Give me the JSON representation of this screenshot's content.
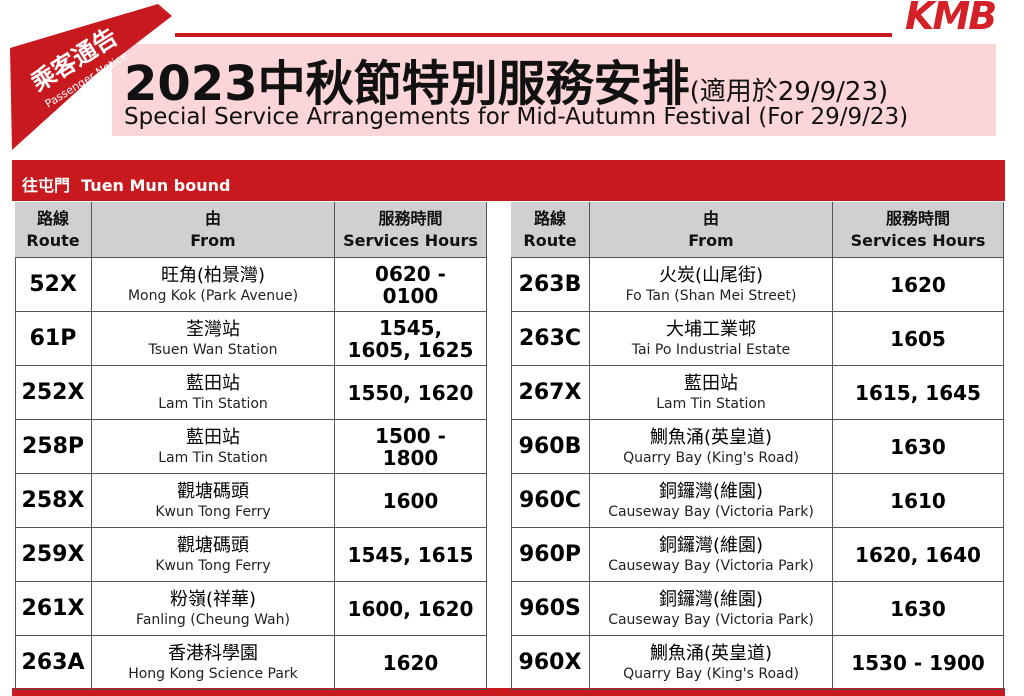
{
  "header": {
    "badge_zh": "乘客通告",
    "badge_en": "Passenger Notice",
    "logo": "KMB",
    "title": "2023中秋節特別服務安排",
    "title_note": "(適用於29/9/23)",
    "subtitle": "Special Service Arrangements for Mid-Autumn Festival (For 29/9/23)"
  },
  "table": {
    "direction": "往屯門  Tuen Mun bound",
    "columns": [
      [
        "路線",
        "Route"
      ],
      [
        "由",
        "From"
      ],
      [
        "服務時間",
        "Services Hours"
      ]
    ],
    "left_rows": [
      [
        "52X",
        "旺角(柏景灣)",
        "Mong Kok (Park Avenue)",
        "0620 - 0100"
      ],
      [
        "61P",
        "荃灣站",
        "Tsuen Wan Station",
        "1545, 1605, 1625"
      ],
      [
        "252X",
        "藍田站",
        "Lam Tin Station",
        "1550, 1620"
      ],
      [
        "258P",
        "藍田站",
        "Lam Tin Station",
        "1500 - 1800"
      ],
      [
        "258X",
        "觀塘碼頭",
        "Kwun Tong Ferry",
        "1600"
      ],
      [
        "259X",
        "觀塘碼頭",
        "Kwun Tong Ferry",
        "1545, 1615"
      ],
      [
        "261X",
        "粉嶺(祥華)",
        "Fanling (Cheung Wah)",
        "1600, 1620"
      ],
      [
        "263A",
        "香港科學園",
        "Hong Kong Science  Park",
        "1620"
      ]
    ],
    "right_rows": [
      [
        "263B",
        "火炭(山尾街)",
        "Fo Tan (Shan Mei Street)",
        "1620"
      ],
      [
        "263C",
        "大埔工業邨",
        "Tai Po Industrial Estate",
        "1605"
      ],
      [
        "267X",
        "藍田站",
        "Lam Tin Station",
        "1615, 1645"
      ],
      [
        "960B",
        "鰂魚涌(英皇道)",
        "Quarry Bay (King's Road)",
        "1630"
      ],
      [
        "960C",
        "銅鑼灣(維園)",
        "Causeway Bay (Victoria Park)",
        "1610"
      ],
      [
        "960P",
        "銅鑼灣(維園)",
        "Causeway Bay (Victoria Park)",
        "1620, 1640"
      ],
      [
        "960S",
        "銅鑼灣(維園)",
        "Causeway Bay (Victoria Park)",
        "1630"
      ],
      [
        "960X",
        "鰂魚涌(英皇道)",
        "Quarry Bay (King's Road)",
        "1530 - 1900"
      ]
    ]
  }
}
